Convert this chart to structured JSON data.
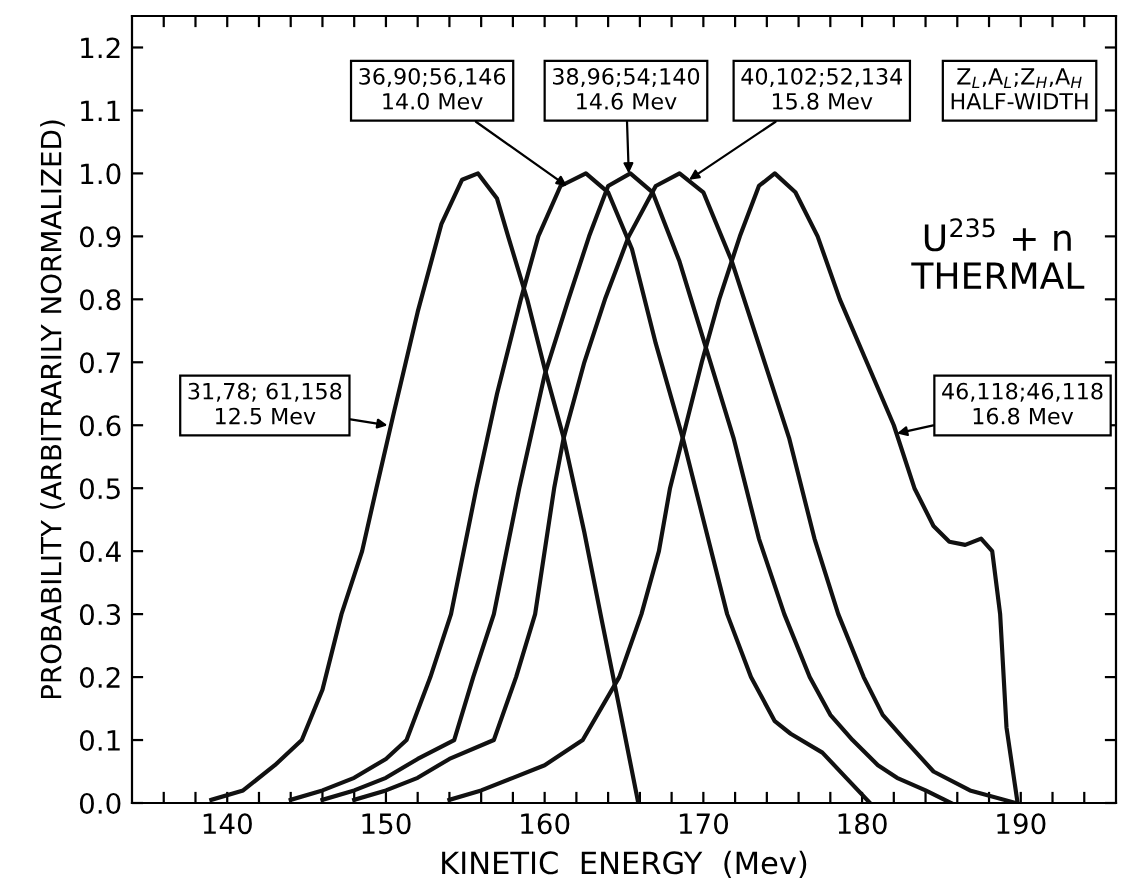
{
  "chart_data": {
    "type": "line",
    "xlabel": "KINETIC  ENERGY  (Mev)",
    "ylabel": "PROBABILITY (ARBITRARILY NORMALIZED)",
    "series": [
      {
        "color": "#111111",
        "x": [
          139,
          141,
          143,
          144.7,
          146,
          147.2,
          148.5,
          149.4,
          150.5,
          152,
          153.5,
          154.8,
          155.8,
          157,
          157.7,
          158.9,
          160,
          161.2,
          162.5,
          163.6,
          164.8,
          165.9
        ],
        "values": [
          0.005,
          0.02,
          0.06,
          0.1,
          0.18,
          0.3,
          0.4,
          0.5,
          0.62,
          0.78,
          0.92,
          0.99,
          1.0,
          0.96,
          0.9,
          0.8,
          0.69,
          0.58,
          0.43,
          0.29,
          0.14,
          0.0
        ]
      },
      {
        "color": "#111111",
        "x": [
          144,
          146,
          148,
          150,
          151.3,
          152.8,
          154.1,
          155.7,
          157,
          158.5,
          159.6,
          161,
          162.6,
          164,
          165.5,
          167,
          168.7,
          170,
          171.5,
          173,
          174.5,
          175.5,
          177.5,
          179,
          180.5
        ],
        "values": [
          0.005,
          0.02,
          0.04,
          0.07,
          0.1,
          0.2,
          0.3,
          0.5,
          0.65,
          0.8,
          0.9,
          0.98,
          1.0,
          0.97,
          0.88,
          0.73,
          0.58,
          0.45,
          0.3,
          0.2,
          0.13,
          0.11,
          0.08,
          0.04,
          0.0
        ]
      },
      {
        "color": "#111111",
        "x": [
          146,
          148,
          150,
          152,
          154.3,
          155.5,
          156.8,
          158.4,
          160,
          161.5,
          162.8,
          164,
          165.4,
          166.8,
          168.5,
          170.2,
          171.9,
          173.5,
          175.1,
          176.7,
          178,
          179.4,
          181,
          182.2,
          184,
          185.6
        ],
        "values": [
          0.005,
          0.02,
          0.04,
          0.07,
          0.1,
          0.2,
          0.3,
          0.5,
          0.68,
          0.8,
          0.9,
          0.98,
          1.0,
          0.97,
          0.86,
          0.72,
          0.58,
          0.42,
          0.3,
          0.2,
          0.14,
          0.1,
          0.06,
          0.04,
          0.02,
          0.0
        ]
      },
      {
        "color": "#111111",
        "x": [
          148,
          150,
          152,
          154,
          156.8,
          158.2,
          159.4,
          160.6,
          161.2,
          162.5,
          163.8,
          165.3,
          167,
          168.5,
          170,
          171.8,
          173.6,
          175.4,
          177,
          178.5,
          180.1,
          181.3,
          182.7,
          184.5,
          186.8,
          189.7
        ],
        "values": [
          0.005,
          0.02,
          0.04,
          0.07,
          0.1,
          0.2,
          0.3,
          0.5,
          0.58,
          0.7,
          0.8,
          0.9,
          0.98,
          1.0,
          0.97,
          0.86,
          0.72,
          0.58,
          0.42,
          0.3,
          0.2,
          0.14,
          0.1,
          0.05,
          0.02,
          0.0
        ]
      },
      {
        "color": "#111111",
        "x": [
          154,
          156,
          158,
          160,
          162.4,
          164.7,
          166.1,
          167.2,
          167.9,
          168.7,
          169.9,
          171,
          172.3,
          173.5,
          174.5,
          175.8,
          177.2,
          178.6,
          180.3,
          182,
          183.3,
          184.5,
          185.5,
          186.5,
          187.5,
          188.2,
          188.7,
          189.1,
          189.8
        ],
        "values": [
          0.005,
          0.02,
          0.04,
          0.06,
          0.1,
          0.2,
          0.3,
          0.4,
          0.5,
          0.58,
          0.7,
          0.8,
          0.9,
          0.98,
          1.0,
          0.97,
          0.9,
          0.8,
          0.7,
          0.6,
          0.5,
          0.44,
          0.415,
          0.41,
          0.42,
          0.4,
          0.3,
          0.12,
          0.0
        ]
      }
    ],
    "xlim": [
      134,
      196
    ],
    "ylim": [
      0,
      1.25
    ],
    "xticks": [
      {
        "value": 136,
        "label": null
      },
      {
        "value": 138,
        "label": null
      },
      140,
      {
        "value": 142,
        "label": null
      },
      {
        "value": 144,
        "label": null
      },
      {
        "value": 146,
        "label": null
      },
      {
        "value": 148,
        "label": null
      },
      150,
      {
        "value": 152,
        "label": null
      },
      {
        "value": 154,
        "label": null
      },
      {
        "value": 156,
        "label": null
      },
      {
        "value": 158,
        "label": null
      },
      160,
      {
        "value": 162,
        "label": null
      },
      {
        "value": 164,
        "label": null
      },
      {
        "value": 166,
        "label": null
      },
      {
        "value": 168,
        "label": null
      },
      170,
      {
        "value": 172,
        "label": null
      },
      {
        "value": 174,
        "label": null
      },
      {
        "value": 176,
        "label": null
      },
      {
        "value": 178,
        "label": null
      },
      180,
      {
        "value": 182,
        "label": null
      },
      {
        "value": 184,
        "label": null
      },
      {
        "value": 186,
        "label": null
      },
      {
        "value": 188,
        "label": null
      },
      190,
      {
        "value": 192,
        "label": null
      },
      {
        "value": 194,
        "label": null
      }
    ],
    "yticks": [
      {
        "value": 0,
        "label": "0.0"
      },
      {
        "value": 0.1,
        "label": "0.1"
      },
      {
        "value": 0.2,
        "label": "0.2"
      },
      {
        "value": 0.3,
        "label": "0.3"
      },
      {
        "value": 0.4,
        "label": "0.4"
      },
      {
        "value": 0.5,
        "label": "0.5"
      },
      {
        "value": 0.6,
        "label": "0.6"
      },
      {
        "value": 0.7,
        "label": "0.7"
      },
      {
        "value": 0.8,
        "label": "0.8"
      },
      {
        "value": 0.9,
        "label": "0.9"
      },
      {
        "value": 1.0,
        "label": "1.0"
      },
      {
        "value": 1.1,
        "label": "1.1"
      },
      {
        "value": 1.2,
        "label": "1.2"
      }
    ],
    "grid": false,
    "legend": false,
    "marker": "none",
    "line_style": "solid",
    "annotations": [
      {
        "text": "31,78; 61,158\n12.5 Mev",
        "x": 150.1,
        "y": 0.6
      },
      {
        "text": "36,90;56,146\n14.0 Mev",
        "x": 161.4,
        "y": 0.98
      },
      {
        "text": "38,96;54;140\n14.6 Mev",
        "x": 165.3,
        "y": 1.0
      },
      {
        "text": "40,102;52,134\n15.8 Mev",
        "x": 169.1,
        "y": 0.99
      },
      "Z$_{L}$,A$_{L}$;Z$_{H}$,A$_{H}$\nHALF-WIDTH",
      {
        "text": "46,118;46,118\n16.8 Mev",
        "x": 182.2,
        "y": 0.587
      },
      "U$^{235}$ + n\nTHERMAL"
    ]
  }
}
